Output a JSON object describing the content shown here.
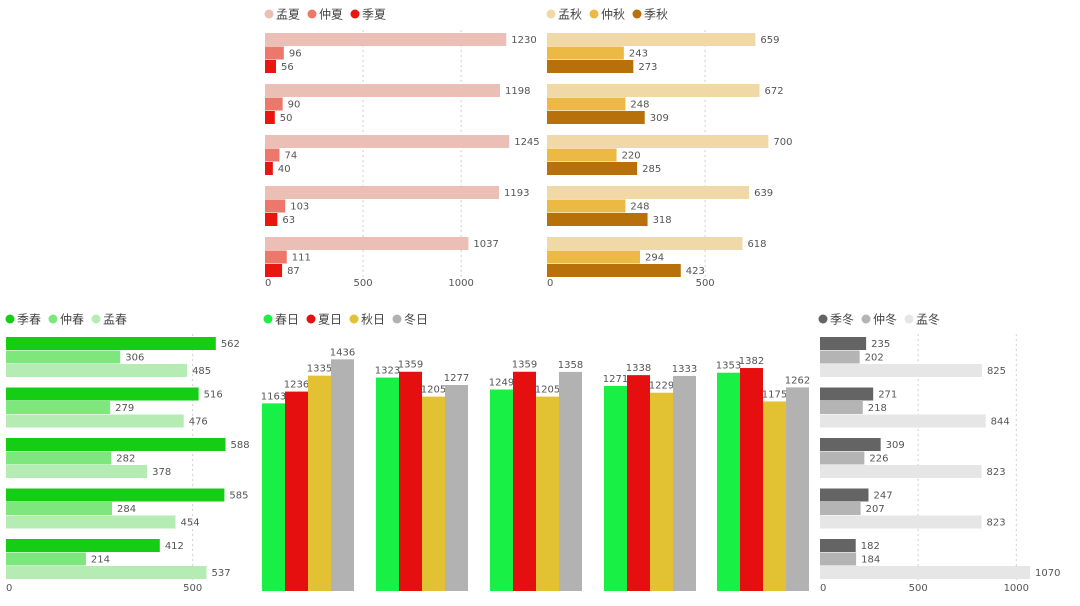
{
  "chart_data": [
    {
      "id": "summer",
      "type": "bar",
      "orientation": "horizontal",
      "series": [
        {
          "name": "孟夏",
          "color": "#ecbfb6",
          "values": [
            1230,
            1198,
            1245,
            1193,
            1037
          ]
        },
        {
          "name": "仲夏",
          "color": "#ec776b",
          "values": [
            96,
            90,
            74,
            103,
            111
          ]
        },
        {
          "name": "季夏",
          "color": "#e8160f",
          "values": [
            56,
            50,
            40,
            63,
            87
          ]
        }
      ],
      "xlim": [
        0,
        1300
      ],
      "xticks": [
        0,
        500,
        1000
      ],
      "grid": true,
      "legend": "top-left"
    },
    {
      "id": "autumn",
      "type": "bar",
      "orientation": "horizontal",
      "series": [
        {
          "name": "孟秋",
          "color": "#f0d8a7",
          "values": [
            659,
            672,
            700,
            639,
            618
          ]
        },
        {
          "name": "仲秋",
          "color": "#ecb945",
          "values": [
            243,
            248,
            220,
            248,
            294
          ]
        },
        {
          "name": "季秋",
          "color": "#b8710a",
          "values": [
            273,
            309,
            285,
            318,
            423
          ]
        }
      ],
      "xlim": [
        0,
        800
      ],
      "xticks": [
        0,
        500
      ],
      "grid": true,
      "legend": "top-left"
    },
    {
      "id": "spring",
      "type": "bar",
      "orientation": "horizontal",
      "series": [
        {
          "name": "季春",
          "color": "#16cd16",
          "values": [
            562,
            516,
            588,
            585,
            412
          ]
        },
        {
          "name": "仲春",
          "color": "#7de67d",
          "values": [
            306,
            279,
            282,
            284,
            214
          ]
        },
        {
          "name": "孟春",
          "color": "#b4ecb4",
          "values": [
            485,
            476,
            378,
            454,
            537
          ]
        }
      ],
      "xlim": [
        0,
        600
      ],
      "xticks": [
        0,
        500
      ],
      "grid": true,
      "legend": "top-left"
    },
    {
      "id": "days",
      "type": "bar",
      "orientation": "vertical",
      "series": [
        {
          "name": "春日",
          "color": "#18f046",
          "values": [
            1163,
            1323,
            1249,
            1271,
            1353
          ]
        },
        {
          "name": "夏日",
          "color": "#e60f0f",
          "values": [
            1236,
            1359,
            1359,
            1338,
            1382
          ]
        },
        {
          "name": "秋日",
          "color": "#e2c132",
          "values": [
            1335,
            1205,
            1205,
            1229,
            1175
          ]
        },
        {
          "name": "冬日",
          "color": "#b2b2b2",
          "values": [
            1436,
            1277,
            1358,
            1333,
            1262
          ]
        }
      ],
      "ylim": [
        0,
        1500
      ],
      "grid": false,
      "legend": "top-left"
    },
    {
      "id": "winter",
      "type": "bar",
      "orientation": "horizontal",
      "series": [
        {
          "name": "季冬",
          "color": "#646464",
          "values": [
            235,
            271,
            309,
            247,
            182
          ]
        },
        {
          "name": "仲冬",
          "color": "#b4b4b4",
          "values": [
            202,
            218,
            226,
            207,
            184
          ]
        },
        {
          "name": "孟冬",
          "color": "#e6e6e6",
          "values": [
            825,
            844,
            823,
            823,
            1070
          ]
        }
      ],
      "xlim": [
        0,
        1080
      ],
      "xticks": [
        0,
        500,
        1000
      ],
      "grid": true,
      "legend": "top-left"
    }
  ]
}
